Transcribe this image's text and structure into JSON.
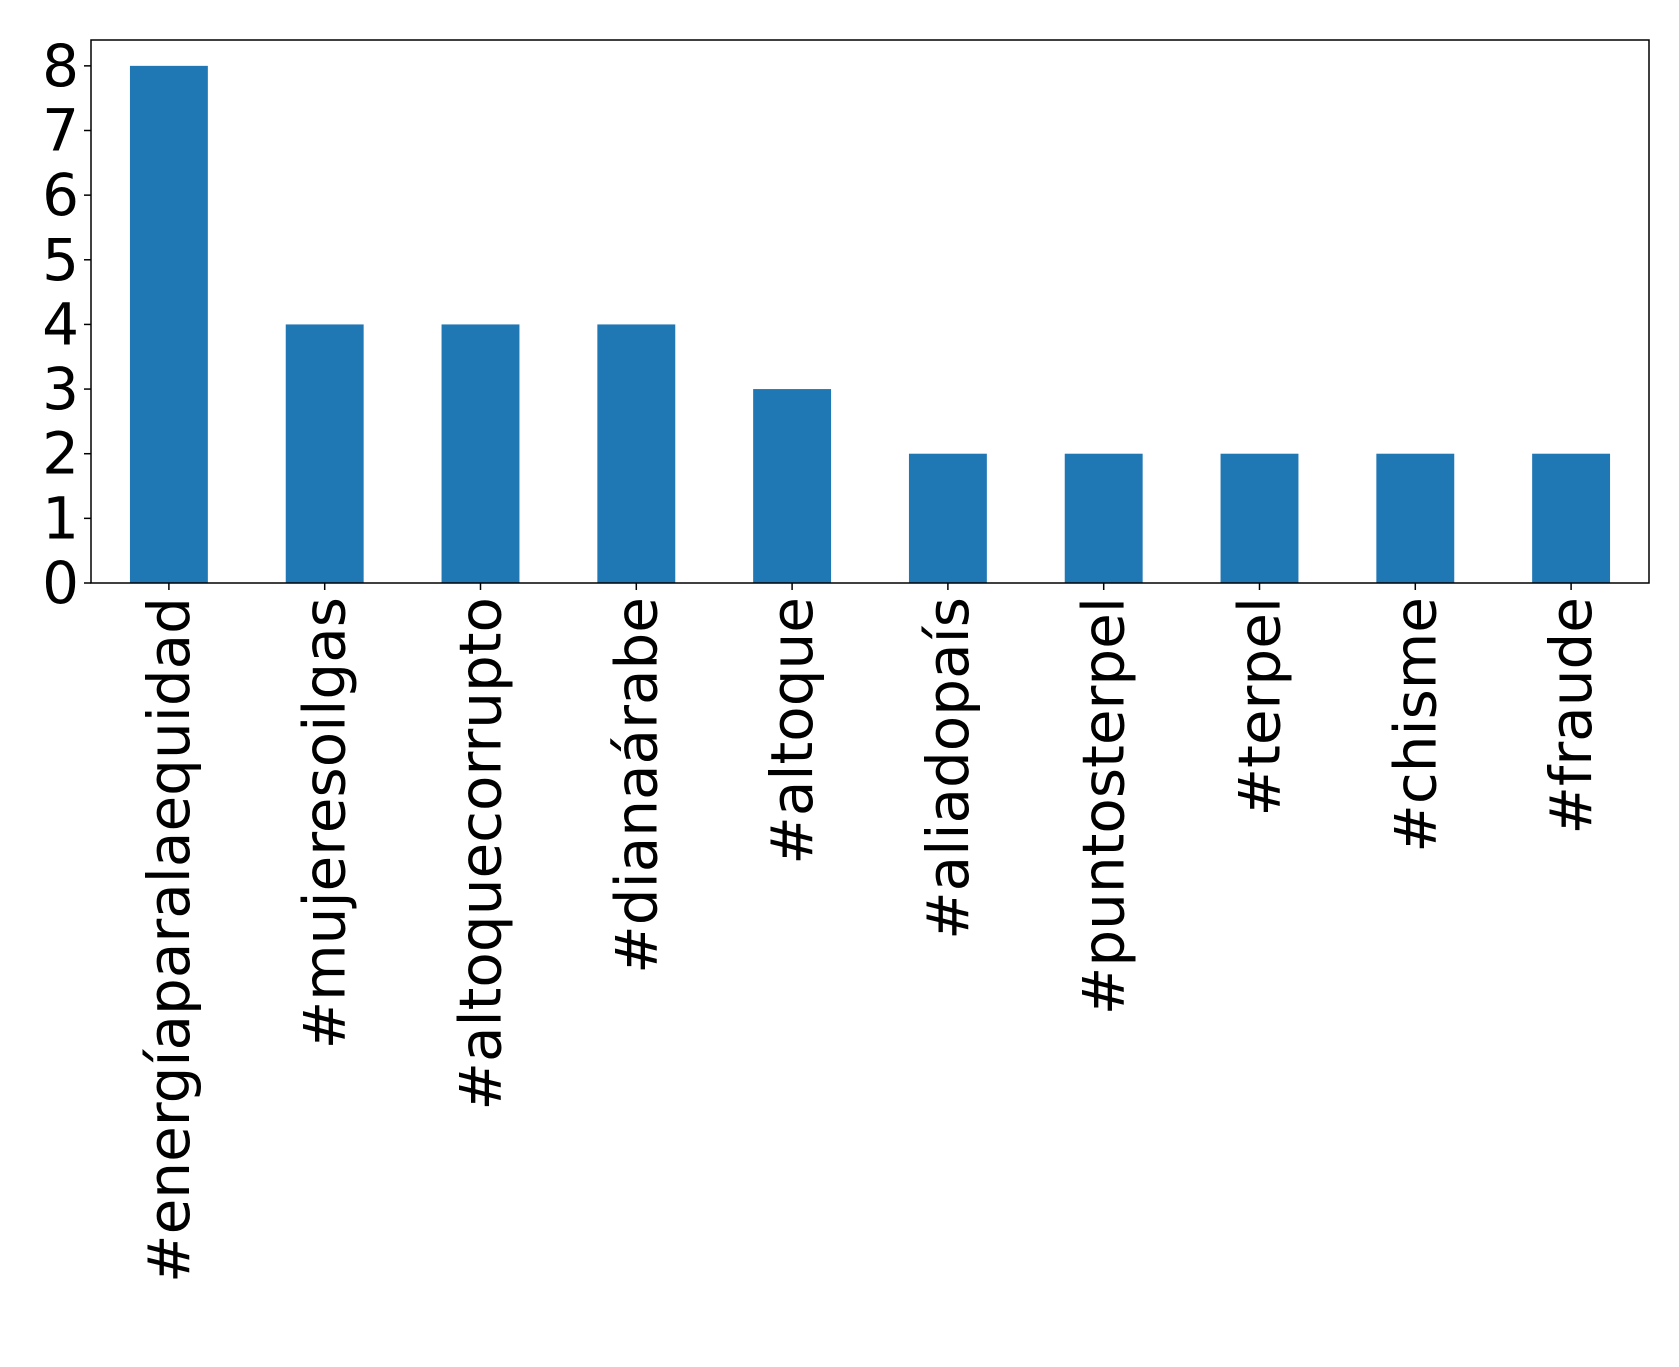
{
  "chart_data": {
    "type": "bar",
    "categories": [
      "#energíaparalaequidad",
      "#mujeresoilgas",
      "#altoquecorrupto",
      "#dianaárabe",
      "#altoque",
      "#aliadopaís",
      "#puntosterpel",
      "#terpel",
      "#chisme",
      "#fraude"
    ],
    "values": [
      8,
      4,
      4,
      4,
      3,
      2,
      2,
      2,
      2,
      2
    ],
    "title": "",
    "xlabel": "",
    "ylabel": "",
    "ylim": [
      0,
      8.4
    ],
    "yticks": [
      0,
      1,
      2,
      3,
      4,
      5,
      6,
      7,
      8
    ],
    "grid": false,
    "legend": "none",
    "bar_color": "#1f77b4"
  }
}
